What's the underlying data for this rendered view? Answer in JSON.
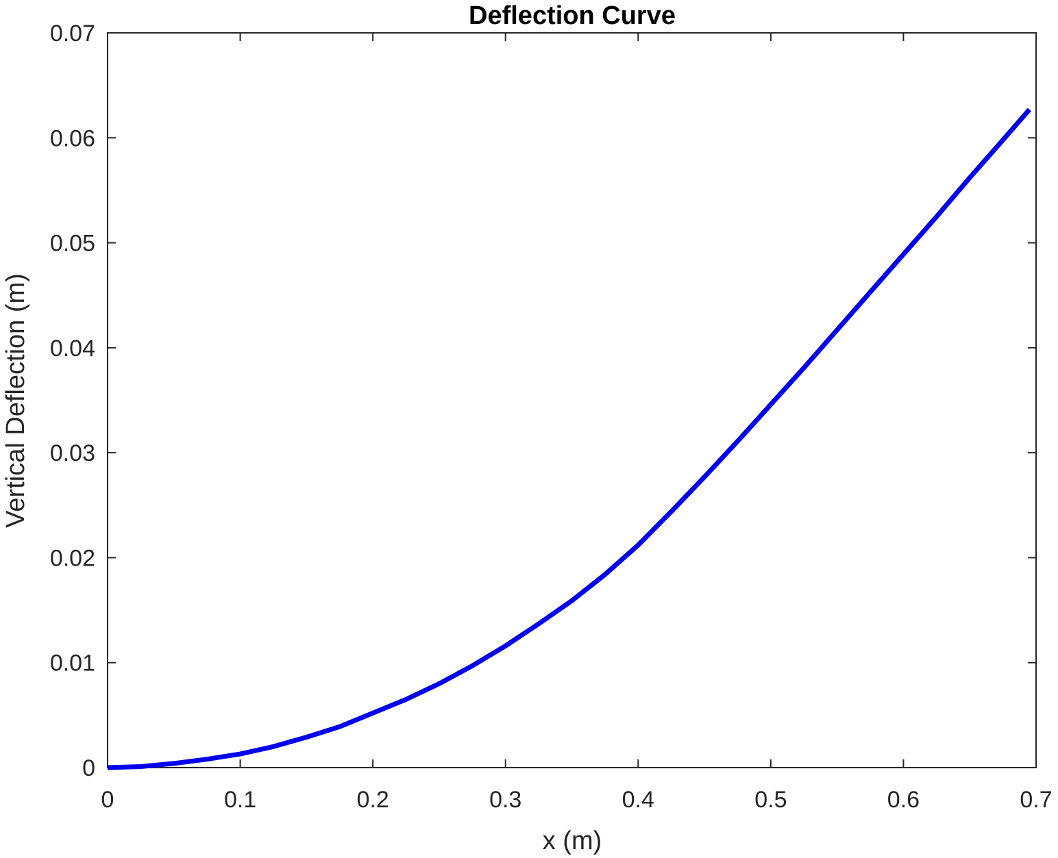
{
  "chart_data": {
    "type": "line",
    "title": "Deflection Curve",
    "xlabel": "x (m)",
    "ylabel": "Vertical Deflection (m)",
    "xlim": [
      0,
      0.7
    ],
    "ylim": [
      0,
      0.07
    ],
    "xticks": [
      0,
      0.1,
      0.2,
      0.3,
      0.4,
      0.5,
      0.6,
      0.7
    ],
    "xtick_labels": [
      "0",
      "0.1",
      "0.2",
      "0.3",
      "0.4",
      "0.5",
      "0.6",
      "0.7"
    ],
    "yticks": [
      0,
      0.01,
      0.02,
      0.03,
      0.04,
      0.05,
      0.06,
      0.07
    ],
    "ytick_labels": [
      "0",
      "0.01",
      "0.02",
      "0.03",
      "0.04",
      "0.05",
      "0.06",
      "0.07"
    ],
    "grid": false,
    "legend": "none",
    "line_color": "#0000ee",
    "series": [
      {
        "x": [
          0,
          0.025,
          0.05,
          0.075,
          0.1,
          0.125,
          0.15,
          0.175,
          0.2,
          0.225,
          0.25,
          0.275,
          0.3,
          0.325,
          0.35,
          0.375,
          0.4,
          0.425,
          0.45,
          0.475,
          0.5,
          0.525,
          0.55,
          0.575,
          0.6,
          0.625,
          0.65,
          0.675,
          0.695
        ],
        "y": [
          0,
          0.0001,
          0.0004,
          0.0008,
          0.0013,
          0.002,
          0.0029,
          0.0039,
          0.0052,
          0.0065,
          0.008,
          0.0097,
          0.0116,
          0.0137,
          0.0159,
          0.0184,
          0.0212,
          0.0244,
          0.0277,
          0.0311,
          0.0346,
          0.0381,
          0.0417,
          0.0453,
          0.0489,
          0.0525,
          0.0562,
          0.0598,
          0.0627
        ]
      }
    ]
  }
}
